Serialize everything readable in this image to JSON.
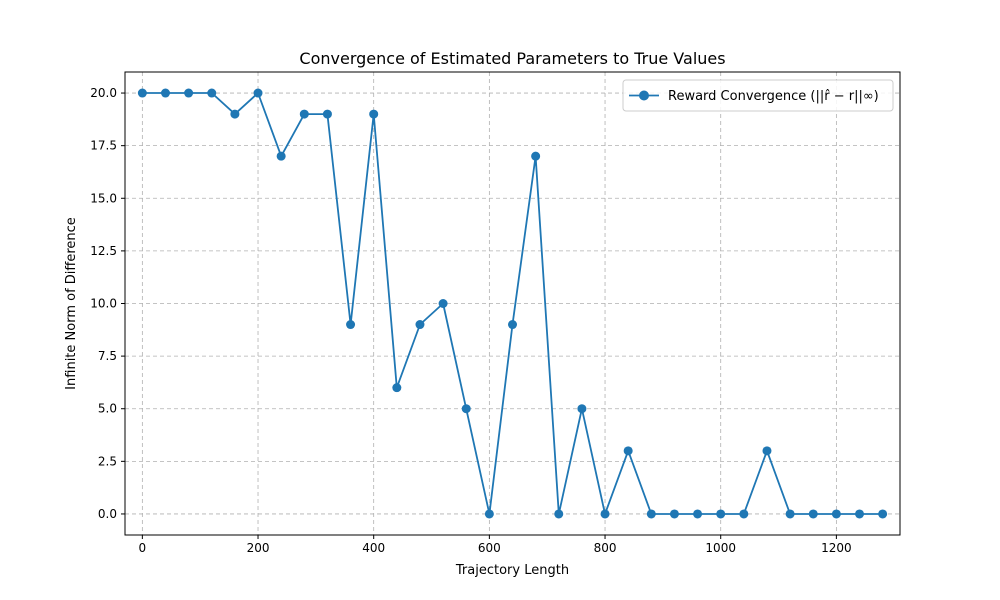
{
  "chart_data": {
    "type": "line",
    "title": "Convergence of Estimated Parameters to True Values",
    "xlabel": "Trajectory Length",
    "ylabel": "Infinite Norm of Difference",
    "xlim": [
      -30,
      1310
    ],
    "ylim": [
      -1,
      21
    ],
    "x_ticks": [
      0,
      200,
      400,
      600,
      800,
      1000,
      1200
    ],
    "x_tick_labels": [
      "0",
      "200",
      "400",
      "600",
      "800",
      "1000",
      "1200"
    ],
    "y_ticks": [
      0,
      2.5,
      5,
      7.5,
      10,
      12.5,
      15,
      17.5,
      20
    ],
    "y_tick_labels": [
      "0.0",
      "2.5",
      "5.0",
      "7.5",
      "10.0",
      "12.5",
      "15.0",
      "17.5",
      "20.0"
    ],
    "grid": true,
    "legend_position": "top-right",
    "series": [
      {
        "name": "Reward Convergence (||r̂ − r||∞)",
        "color": "#1f77b4",
        "marker": "circle",
        "x": [
          0,
          40,
          80,
          120,
          160,
          200,
          240,
          280,
          320,
          360,
          400,
          440,
          480,
          520,
          560,
          600,
          640,
          680,
          720,
          760,
          800,
          840,
          880,
          920,
          960,
          1000,
          1040,
          1080,
          1120,
          1160,
          1200,
          1240,
          1280
        ],
        "y": [
          20,
          20,
          20,
          20,
          19,
          20,
          17,
          19,
          19,
          9,
          19,
          6,
          9,
          10,
          5,
          0,
          9,
          17,
          0,
          5,
          0,
          3,
          0,
          0,
          0,
          0,
          0,
          3,
          0,
          0,
          0,
          0,
          0
        ]
      }
    ]
  }
}
